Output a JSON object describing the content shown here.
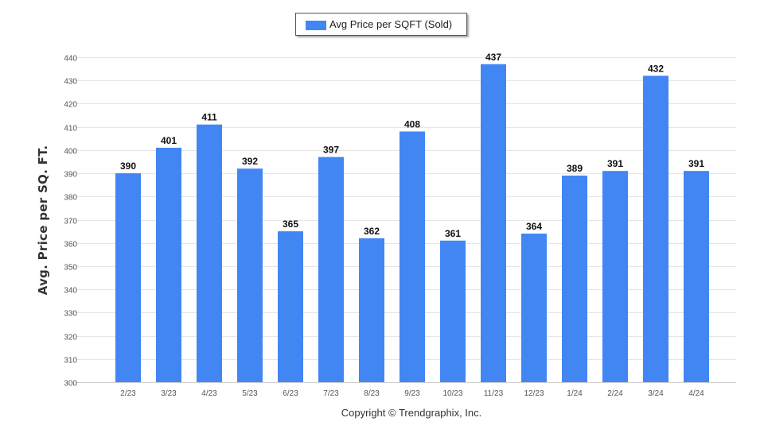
{
  "chart_data": {
    "type": "bar",
    "categories": [
      "2/23",
      "3/23",
      "4/23",
      "5/23",
      "6/23",
      "7/23",
      "8/23",
      "9/23",
      "10/23",
      "11/23",
      "12/23",
      "1/24",
      "2/24",
      "3/24",
      "4/24"
    ],
    "series": [
      {
        "name": "Avg Price per SQFT (Sold)",
        "values": [
          390,
          401,
          411,
          392,
          365,
          397,
          362,
          408,
          361,
          437,
          364,
          389,
          391,
          432,
          391
        ]
      }
    ],
    "ylabel": "Avg. Price per SQ. FT.",
    "ylim": [
      300,
      440
    ],
    "yticks": [
      300,
      310,
      320,
      330,
      340,
      350,
      360,
      370,
      380,
      390,
      400,
      410,
      420,
      430,
      440
    ],
    "grid": true,
    "legend_position": "top-center",
    "bar_color": "#4286f4",
    "grid_color": "#e6e6e6",
    "footer": "Copyright © Trendgraphix, Inc."
  }
}
